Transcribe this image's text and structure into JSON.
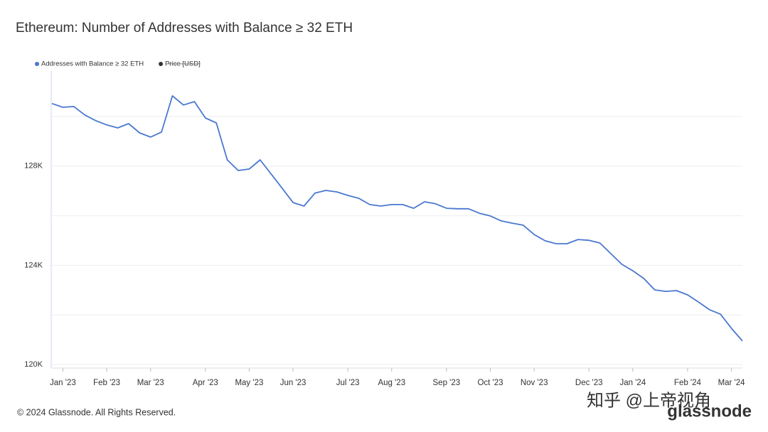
{
  "chart_data": {
    "type": "line",
    "title": "Ethereum: Number of Addresses with Balance ≥ 32 ETH",
    "categories": [
      null,
      "Jan '23",
      null,
      null,
      null,
      "Feb '23",
      null,
      null,
      null,
      "Mar '23",
      null,
      null,
      null,
      null,
      "Apr '23",
      null,
      null,
      null,
      "May '23",
      null,
      null,
      null,
      "Jun '23",
      null,
      null,
      null,
      null,
      "Jul '23",
      null,
      null,
      null,
      "Aug '23",
      null,
      null,
      null,
      null,
      "Sep '23",
      null,
      null,
      null,
      "Oct '23",
      null,
      null,
      null,
      "Nov '23",
      null,
      null,
      null,
      null,
      "Dec '23",
      null,
      null,
      null,
      "Jan '24",
      null,
      null,
      null,
      null,
      "Feb '24",
      null,
      null,
      null,
      "Mar '24",
      null
    ],
    "series": [
      {
        "name": "Addresses with Balance ≥ 32 ETH",
        "color": "#4a78d0",
        "values": [
          130520,
          130370,
          130400,
          130060,
          129830,
          129660,
          129540,
          129710,
          129340,
          129170,
          129370,
          130830,
          130460,
          130600,
          129940,
          129740,
          128250,
          127820,
          127880,
          128250,
          127680,
          127110,
          126530,
          126390,
          126910,
          127020,
          126960,
          126820,
          126700,
          126450,
          126390,
          126450,
          126450,
          126300,
          126560,
          126480,
          126300,
          126280,
          126280,
          126100,
          125990,
          125790,
          125700,
          125620,
          125240,
          124990,
          124870,
          124870,
          125040,
          125010,
          124900,
          124470,
          124040,
          123780,
          123470,
          123010,
          122950,
          122980,
          122810,
          122520,
          122210,
          122030,
          121460,
          120950
        ]
      }
    ],
    "legend_inactive": {
      "name": "Price [USD]",
      "color": "#333333"
    },
    "ylim": [
      119860,
      131830
    ],
    "yticks": [
      {
        "value": 120000,
        "label": "120K"
      },
      {
        "value": 124000,
        "label": "124K"
      },
      {
        "value": 128000,
        "label": "128K"
      }
    ],
    "minor_gridlines": [
      122000,
      126000,
      130000
    ],
    "grid": true,
    "footer": "© 2024 Glassnode. All Rights Reserved.",
    "logo": "glassnode",
    "watermark": "知乎 @上帝视角"
  }
}
